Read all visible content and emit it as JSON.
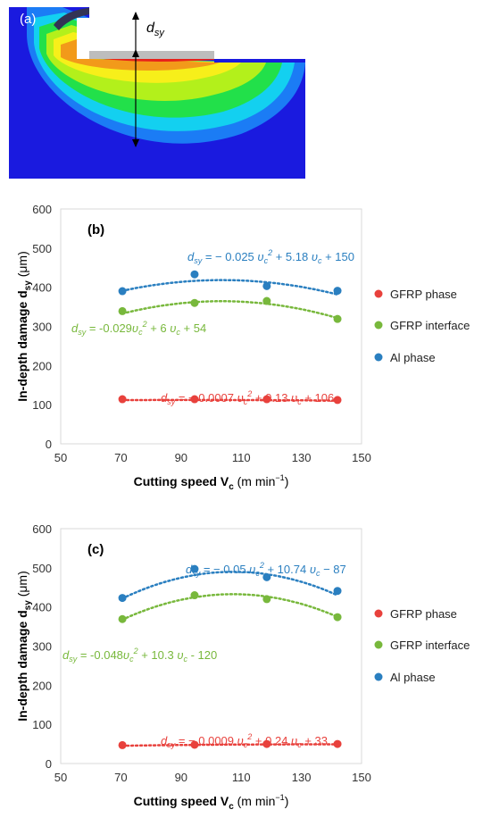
{
  "fe_panel": {
    "label": "(a)",
    "dimension_symbol": "d",
    "dimension_subscript": "sy",
    "colors": {
      "background": "#1a1adf",
      "blue_light": "#1b7cf5",
      "cyan": "#13d0f0",
      "green": "#22e04a",
      "yellow_green": "#b3f01b",
      "yellow": "#f7ef1a",
      "orange": "#f29a1a",
      "red": "#e8211a",
      "gray": "#bdbdbd"
    }
  },
  "chart_data": [
    {
      "type": "scatter",
      "panel_label": "(b)",
      "xlabel": "Cutting speed  V",
      "xlabel_sub": "c",
      "xlabel_unit": " (m min",
      "xlabel_unit_sup": "−1",
      "xlabel_close": ")",
      "ylabel": "In-depth damage d",
      "ylabel_sub": "sy",
      "ylabel_unit": " (μm)",
      "xlim": [
        50,
        150
      ],
      "ylim": [
        0,
        600
      ],
      "xticks": [
        "50",
        "70",
        "90",
        "110",
        "130",
        "150"
      ],
      "yticks": [
        "0",
        "100",
        "200",
        "300",
        "400",
        "500",
        "600"
      ],
      "grid": false,
      "legend_position": "right",
      "trendline": "dotted polynomial order 2",
      "series": [
        {
          "name": "GFRP phase",
          "color": "#e8413c",
          "x": [
            70.5,
            94.5,
            118.5,
            142
          ],
          "y": [
            114,
            114,
            114,
            112
          ],
          "fit": [
            -0.0007,
            0.13,
            106
          ],
          "equation": {
            "lhs": "d",
            "lhs_sub": "sy",
            "part1": " = − 0.0007 ",
            "v": "υ",
            "v_sub": "c",
            "sup": "2",
            "part2": " + 0.13 ",
            "v2": "υ",
            "v2_sub": "c",
            "part3": " + 106"
          }
        },
        {
          "name": "GFRP interface",
          "color": "#78b83c",
          "x": [
            70.5,
            94.5,
            118.5,
            142
          ],
          "y": [
            339,
            360,
            365,
            319
          ],
          "fit": [
            -0.029,
            6,
            54
          ],
          "equation": {
            "lhs": "d",
            "lhs_sub": "sy",
            "part1": " = -0.029",
            "v": "υ",
            "v_sub": "c",
            "sup": "2",
            "part2": " + 6 ",
            "v2": "υ",
            "v2_sub": "c",
            "part3": " + 54"
          }
        },
        {
          "name": "Al phase",
          "color": "#2a7fc0",
          "x": [
            70.5,
            94.5,
            118.5,
            142
          ],
          "y": [
            390,
            433,
            403,
            391
          ],
          "fit": [
            -0.025,
            5.18,
            150
          ],
          "equation": {
            "lhs": "d",
            "lhs_sub": "sy",
            "part1": " = − 0.025 ",
            "v": "υ",
            "v_sub": "c",
            "sup": "2",
            "part2": " + 5.18 ",
            "v2": "υ",
            "v2_sub": "c",
            "part3": " + 150"
          }
        }
      ]
    },
    {
      "type": "scatter",
      "panel_label": "(c)",
      "xlabel": "Cutting speed  V",
      "xlabel_sub": "c",
      "xlabel_unit": " (m min",
      "xlabel_unit_sup": "−1",
      "xlabel_close": ")",
      "ylabel": "In-depth damage d",
      "ylabel_sub": "sy",
      "ylabel_unit": " (μm)",
      "xlim": [
        50,
        150
      ],
      "ylim": [
        0,
        600
      ],
      "xticks": [
        "50",
        "70",
        "90",
        "110",
        "130",
        "150"
      ],
      "yticks": [
        "0",
        "100",
        "200",
        "300",
        "400",
        "500",
        "600"
      ],
      "grid": false,
      "legend_position": "right",
      "trendline": "dotted polynomial order 2",
      "series": [
        {
          "name": "GFRP phase",
          "color": "#e8413c",
          "x": [
            70.5,
            94.5,
            118.5,
            142
          ],
          "y": [
            47,
            48,
            50,
            50
          ],
          "fit": [
            -0.0009,
            0.24,
            33
          ],
          "equation": {
            "lhs": "d",
            "lhs_sub": "sy",
            "part1": " = − 0.0009  ",
            "v": "υ",
            "v_sub": "c",
            "sup": "2",
            "part2": " + 0.24 ",
            "v2": "υ",
            "v2_sub": "c",
            "part3": " + 33"
          }
        },
        {
          "name": "GFRP interface",
          "color": "#78b83c",
          "x": [
            70.5,
            94.5,
            118.5,
            142
          ],
          "y": [
            369,
            430,
            420,
            374
          ],
          "fit": [
            -0.048,
            10.3,
            -120
          ],
          "equation": {
            "lhs": "d",
            "lhs_sub": "sy",
            "part1": " = -0.048",
            "v": "υ",
            "v_sub": "c",
            "sup": "2",
            "part2": " + 10.3 ",
            "v2": "υ",
            "v2_sub": "c",
            "part3": " - 120"
          }
        },
        {
          "name": "Al phase",
          "color": "#2a7fc0",
          "x": [
            70.5,
            94.5,
            118.5,
            142
          ],
          "y": [
            423,
            497,
            476,
            441
          ],
          "fit": [
            -0.05,
            10.74,
            -87
          ],
          "equation": {
            "lhs": "d",
            "lhs_sub": "sy",
            "part1": " = − 0.05 ",
            "v": "υ",
            "v_sub": "c",
            "sup": "2",
            "part2": " + 10.74 ",
            "v2": "υ",
            "v2_sub": "c",
            "part3": " − 87"
          }
        }
      ]
    }
  ]
}
